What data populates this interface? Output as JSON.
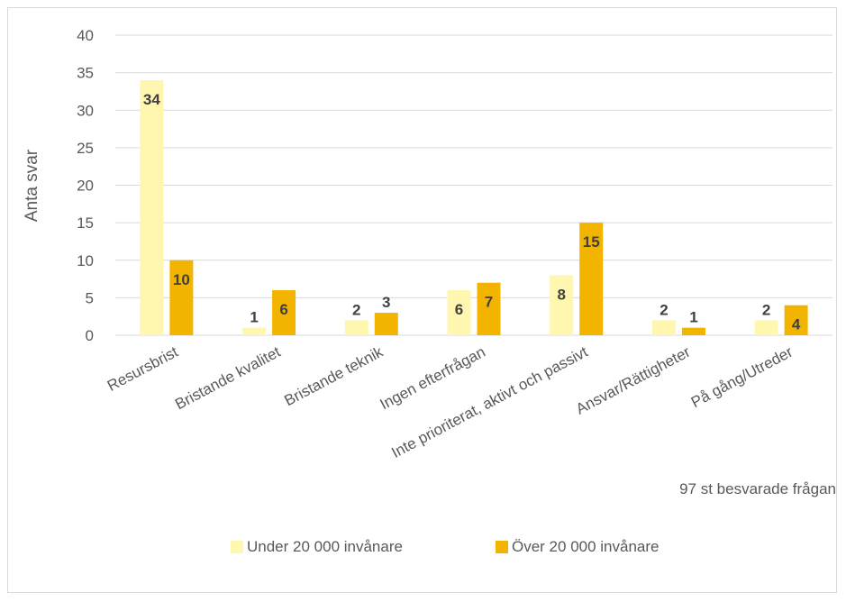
{
  "chart_data": {
    "type": "bar",
    "ylabel": "Anta svar",
    "ylim": [
      0,
      40
    ],
    "yticks": [
      0,
      5,
      10,
      15,
      20,
      25,
      30,
      35,
      40
    ],
    "grid": true,
    "legend_placement": "bottom",
    "categories": [
      "Resursbrist",
      "Bristande kvalitet",
      "Bristande teknik",
      "Ingen efterfrågan",
      "Inte prioriterat, aktivt och passivt",
      "Ansvar/Rättigheter",
      "På gång/Utreder"
    ],
    "series": [
      {
        "name": "Under 20 000 invånare",
        "color": "#fff6b0",
        "values": [
          34,
          1,
          2,
          6,
          8,
          2,
          2
        ]
      },
      {
        "name": "Över 20 000 invånare",
        "color": "#f3b400",
        "values": [
          10,
          6,
          3,
          7,
          15,
          1,
          4
        ]
      }
    ],
    "annotation": "97 st besvarade frågan",
    "colors": {
      "gridline": "#d9d9d9",
      "axis_text": "#595959",
      "label_text": "#404040"
    }
  }
}
